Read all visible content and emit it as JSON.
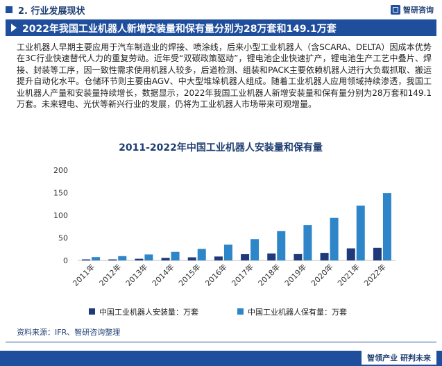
{
  "header": {
    "section_title": "2. 行业发展现状",
    "logo_text": "智研咨询"
  },
  "banner": {
    "title": "2022年我国工业机器人新增安装量和保有量分别为28万套和149.1万套"
  },
  "paragraph": "工业机器人早期主要应用于汽车制造业的焊接、喷涂线，后来小型工业机器人（含SCARA、DELTA）因成本优势在3C行业快速替代人力的重复劳动。近年受“双碳政策驱动”，锂电池企业快速扩产，锂电池生产工艺中叠片、焊接、封装等工序，因一致性需求使用机器人较多，后道检测、组装和PACK主要依赖机器人进行大负载抓取、搬运提升自动化水平。仓储环节则主要由AGV、中大型堆垛机器人组成。随着工业机器人应用领域持续渗透，我国工业机器人产量和安装量持续增长，数据显示，2022年我国工业机器人新增安装量和保有量分别为28万套和149.1万套。未来锂电、光伏等新兴行业的发展，仍将为工业机器人市场带来可观增量。",
  "source": "资料来源：IFR、智研咨询整理",
  "footer": {
    "slogan": "智领产业 研判未来"
  },
  "colors": {
    "brand": "#1f4e9c",
    "series_install": "#1f3a7a",
    "series_stock": "#2e86c8"
  },
  "chart_data": {
    "type": "bar",
    "title": "2011-2022年中国工业机器人安装量和保有量",
    "categories": [
      "2011年",
      "2012年",
      "2013年",
      "2014年",
      "2015年",
      "2016年",
      "2017年",
      "2018年",
      "2019年",
      "2020年",
      "2021年",
      "2022年"
    ],
    "series": [
      {
        "name": "中国工业机器人安装量：万套",
        "color": "#1f3a7a",
        "values": [
          2.3,
          2.3,
          3.7,
          5.7,
          6.9,
          8.7,
          13.8,
          15.4,
          14.1,
          16.8,
          26.8,
          28.0
        ]
      },
      {
        "name": "中国工业机器人保有量：万套",
        "color": "#2e86c8",
        "values": [
          7.4,
          9.6,
          13.2,
          18.9,
          25.6,
          34.9,
          47.3,
          64.9,
          78.3,
          94.3,
          121.5,
          149.1
        ]
      }
    ],
    "ylim": [
      0,
      200
    ],
    "yticks": [
      0,
      50,
      100,
      150,
      200
    ],
    "legend": "bottom"
  }
}
